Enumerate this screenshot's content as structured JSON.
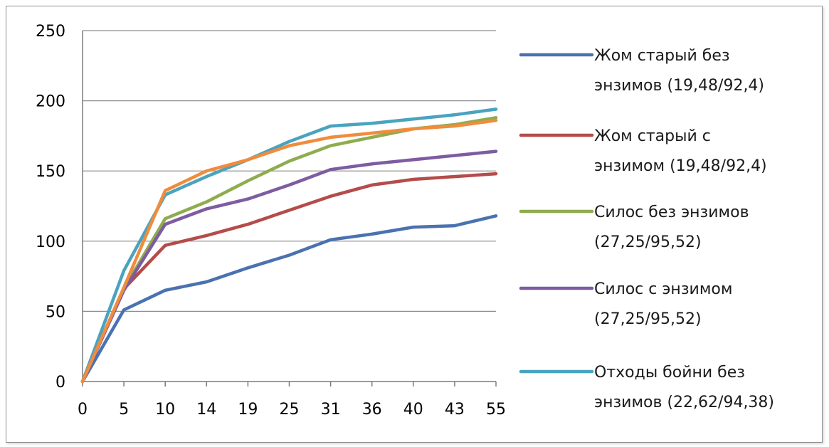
{
  "chart_data": {
    "type": "line",
    "title": "",
    "xlabel": "",
    "ylabel": "",
    "categories": [
      "0",
      "5",
      "10",
      "14",
      "19",
      "25",
      "31",
      "36",
      "40",
      "43",
      "55"
    ],
    "ylim": [
      0,
      250
    ],
    "yticks": [
      0,
      50,
      100,
      150,
      200,
      250
    ],
    "grid": true,
    "legend_position": "right",
    "series": [
      {
        "name": "Жом старый без энзимов (19,48/92,4)",
        "legend_lines": [
          "Жом старый без",
          "энзимов (19,48/92,4)"
        ],
        "color": "#4a72b0",
        "values": [
          0,
          51,
          65,
          71,
          81,
          90,
          101,
          105,
          110,
          111,
          118
        ]
      },
      {
        "name": "Жом старый с энзимом (19,48/92,4)",
        "legend_lines": [
          "Жом старый с",
          "энзимом (19,48/92,4)"
        ],
        "color": "#b44c4a",
        "values": [
          0,
          66,
          97,
          104,
          112,
          122,
          132,
          140,
          144,
          146,
          148
        ]
      },
      {
        "name": "Силос без энзимов (27,25/95,52)",
        "legend_lines": [
          "Силос без энзимов",
          "(27,25/95,52)"
        ],
        "color": "#8fac4e",
        "values": [
          0,
          66,
          116,
          128,
          143,
          157,
          168,
          174,
          180,
          183,
          188
        ]
      },
      {
        "name": "Силос с энзимом (27,25/95,52)",
        "legend_lines": [
          "Силос с энзимом",
          "(27,25/95,52)"
        ],
        "color": "#7d5ca1",
        "values": [
          0,
          65,
          112,
          123,
          130,
          140,
          151,
          155,
          158,
          161,
          164
        ]
      },
      {
        "name": "Отходы бойни без энзимов (22,62/94,38)",
        "legend_lines": [
          "Отходы  бойни без",
          "энзимов (22,62/94,38)"
        ],
        "color": "#4aa3bf",
        "values": [
          0,
          79,
          133,
          146,
          158,
          171,
          182,
          184,
          187,
          190,
          194
        ]
      },
      {
        "name": "",
        "in_legend": false,
        "color": "#f08c3c",
        "values": [
          0,
          67,
          136,
          150,
          158,
          168,
          174,
          177,
          180,
          182,
          186
        ]
      }
    ]
  }
}
